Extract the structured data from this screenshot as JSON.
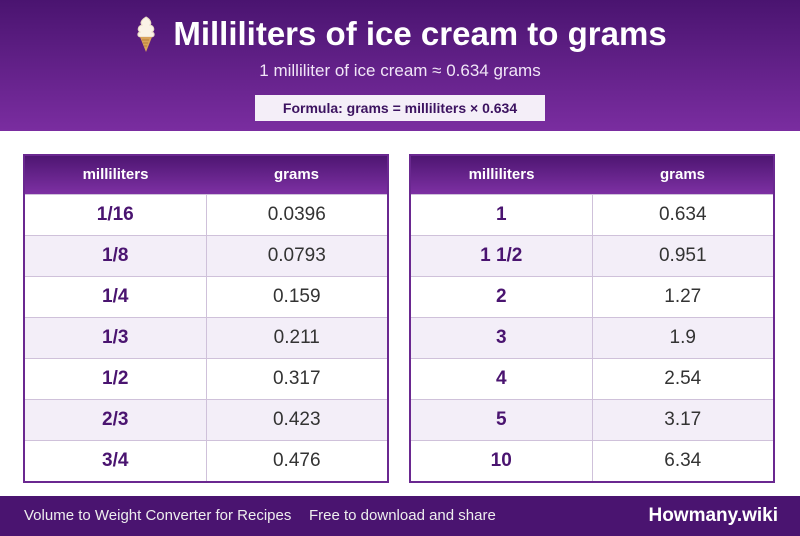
{
  "header": {
    "icon": "ice-cream-icon",
    "title": "Milliliters of ice cream to grams",
    "subtitle": "1 milliliter of ice cream ≈ 0.634 grams",
    "formula": "Formula: grams = milliliters × 0.634"
  },
  "columns": {
    "ml": "milliliters",
    "g": "grams"
  },
  "left_table": [
    {
      "ml": "1/16",
      "g": "0.0396"
    },
    {
      "ml": "1/8",
      "g": "0.0793"
    },
    {
      "ml": "1/4",
      "g": "0.159"
    },
    {
      "ml": "1/3",
      "g": "0.211"
    },
    {
      "ml": "1/2",
      "g": "0.317"
    },
    {
      "ml": "2/3",
      "g": "0.423"
    },
    {
      "ml": "3/4",
      "g": "0.476"
    }
  ],
  "right_table": [
    {
      "ml": "1",
      "g": "0.634"
    },
    {
      "ml": "1 1/2",
      "g": "0.951"
    },
    {
      "ml": "2",
      "g": "1.27"
    },
    {
      "ml": "3",
      "g": "1.9"
    },
    {
      "ml": "4",
      "g": "2.54"
    },
    {
      "ml": "5",
      "g": "3.17"
    },
    {
      "ml": "10",
      "g": "6.34"
    }
  ],
  "footer": {
    "left": "Volume to Weight Converter for Recipes",
    "middle": "Free to download and share",
    "brand": "Howmany.wiki"
  },
  "colors": {
    "primary": "#4a1470",
    "accent": "#7a2da0",
    "row_alt": "#f3eef8"
  }
}
